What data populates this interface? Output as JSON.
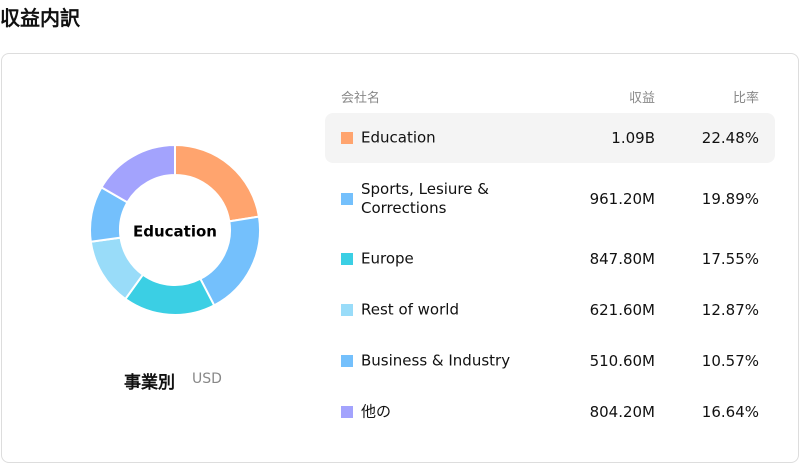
{
  "header": {
    "title": "収益内訳"
  },
  "chart_data": {
    "type": "donut",
    "center_label": "Education",
    "caption": "事業別",
    "unit": "USD",
    "categories": [
      "Education",
      "Sports, Lesiure & Corrections",
      "Europe",
      "Rest of world",
      "Business & Industry",
      "他の"
    ],
    "values": [
      22.48,
      19.89,
      17.55,
      12.87,
      10.57,
      16.64
    ],
    "value_labels": [
      "22.48%",
      "19.89%",
      "17.55%",
      "12.87%",
      "10.57%",
      "16.64%"
    ],
    "colors": [
      "#ffa46e",
      "#74c0fc",
      "#3bcfe4",
      "#99dcf9",
      "#74c0fc",
      "#a3a3fd"
    ]
  },
  "table": {
    "headers": [
      "会社名",
      "収益",
      "比率"
    ],
    "revenue": [
      "1.09B",
      "961.20M",
      "847.80M",
      "621.60M",
      "510.60M",
      "804.20M"
    ],
    "selected": 0
  }
}
